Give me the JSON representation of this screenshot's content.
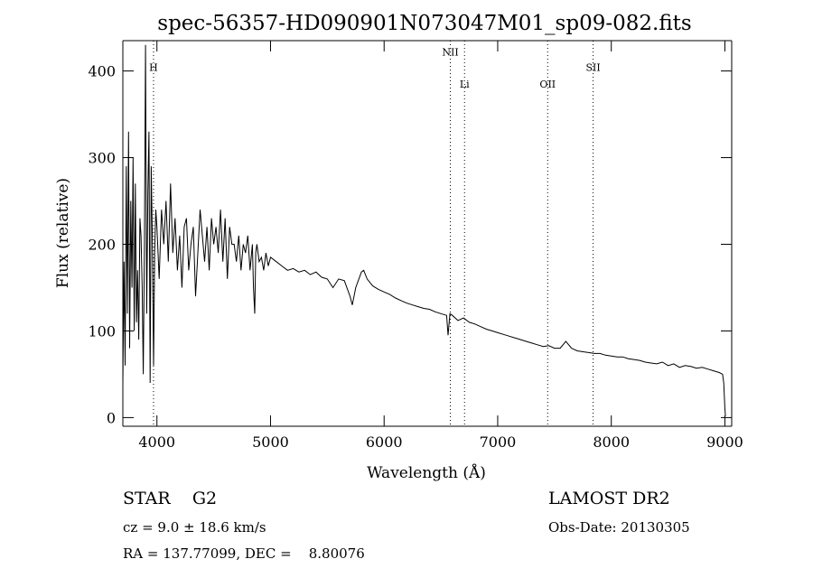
{
  "chart_data": {
    "type": "line",
    "title": "spec-56357-HD090901N073047M01_sp09-082.fits",
    "xlabel": "Wavelength (Å)",
    "ylabel": "Flux (relative)",
    "xlim": [
      3700,
      9060
    ],
    "ylim": [
      -10,
      435
    ],
    "xticks": [
      4000,
      5000,
      6000,
      7000,
      8000,
      9000
    ],
    "yticks": [
      0,
      100,
      200,
      300,
      400
    ],
    "grid": false,
    "line_color": "#000000",
    "series": [
      {
        "x": [
          3700,
          3710,
          3720,
          3730,
          3740,
          3750,
          3760,
          3770,
          3780,
          3790,
          3800,
          3810,
          3820,
          3830,
          3840,
          3850,
          3860,
          3870,
          3880,
          3890,
          3900,
          3910,
          3920,
          3930,
          3940,
          3950,
          3960,
          3970,
          3980,
          3990,
          4000,
          4020,
          4040,
          4060,
          4080,
          4100,
          4120,
          4140,
          4160,
          4180,
          4200,
          4220,
          4240,
          4260,
          4280,
          4300,
          4320,
          4340,
          4360,
          4380,
          4400,
          4420,
          4440,
          4460,
          4480,
          4500,
          4520,
          4540,
          4560,
          4580,
          4600,
          4620,
          4640,
          4660,
          4680,
          4700,
          4720,
          4740,
          4760,
          4780,
          4800,
          4820,
          4840,
          4850,
          4861,
          4870,
          4880,
          4900,
          4920,
          4940,
          4960,
          4980,
          5000,
          5050,
          5100,
          5150,
          5200,
          5250,
          5300,
          5350,
          5400,
          5450,
          5500,
          5550,
          5600,
          5650,
          5700,
          5720,
          5750,
          5800,
          5820,
          5850,
          5900,
          5950,
          6000,
          6050,
          6100,
          6150,
          6200,
          6250,
          6300,
          6350,
          6400,
          6450,
          6500,
          6550,
          6563,
          6580,
          6600,
          6650,
          6700,
          6750,
          6800,
          6850,
          6900,
          6950,
          7000,
          7050,
          7100,
          7150,
          7200,
          7250,
          7300,
          7350,
          7400,
          7450,
          7500,
          7550,
          7600,
          7650,
          7700,
          7750,
          7800,
          7850,
          7900,
          7950,
          8000,
          8050,
          8100,
          8150,
          8200,
          8250,
          8300,
          8350,
          8400,
          8450,
          8500,
          8550,
          8600,
          8650,
          8700,
          8750,
          8800,
          8850,
          8900,
          8950,
          8980,
          8990,
          9000,
          9005
        ],
        "y": [
          40,
          180,
          60,
          290,
          120,
          330,
          80,
          250,
          150,
          300,
          100,
          270,
          110,
          170,
          90,
          230,
          210,
          150,
          50,
          200,
          430,
          120,
          260,
          330,
          40,
          290,
          200,
          60,
          190,
          240,
          220,
          160,
          240,
          200,
          250,
          180,
          270,
          190,
          230,
          170,
          210,
          150,
          220,
          230,
          170,
          200,
          220,
          140,
          190,
          240,
          210,
          180,
          220,
          170,
          230,
          200,
          220,
          190,
          240,
          180,
          230,
          160,
          220,
          200,
          200,
          180,
          210,
          170,
          200,
          190,
          210,
          170,
          200,
          150,
          120,
          190,
          200,
          180,
          185,
          170,
          190,
          175,
          185,
          180,
          175,
          170,
          172,
          168,
          170,
          165,
          168,
          162,
          160,
          150,
          160,
          158,
          140,
          130,
          150,
          168,
          170,
          160,
          152,
          148,
          145,
          142,
          138,
          135,
          132,
          130,
          128,
          126,
          125,
          122,
          120,
          118,
          95,
          120,
          118,
          112,
          115,
          110,
          108,
          105,
          102,
          100,
          98,
          96,
          94,
          92,
          90,
          88,
          86,
          84,
          82,
          83,
          80,
          80,
          88,
          80,
          77,
          76,
          75,
          74,
          74,
          72,
          71,
          70,
          70,
          68,
          67,
          66,
          64,
          63,
          62,
          64,
          60,
          62,
          58,
          60,
          59,
          57,
          58,
          56,
          54,
          52,
          50,
          40,
          10,
          2
        ]
      }
    ],
    "annotations": [
      {
        "label": "H",
        "x": 3970,
        "label_y": 400
      },
      {
        "label": "NII",
        "x": 6583,
        "label_y": 418
      },
      {
        "label": "Li",
        "x": 6708,
        "label_y": 381
      },
      {
        "label": "OII",
        "x": 7440,
        "label_y": 381
      },
      {
        "label": "SII",
        "x": 7840,
        "label_y": 400
      }
    ]
  },
  "info": {
    "object_line": "STAR    G2",
    "survey": "LAMOST DR2",
    "cz_line": "cz = 9.0 ± 18.6 km/s",
    "obs_date": "Obs-Date: 20130305",
    "coords": "RA = 137.77099, DEC =    8.80076"
  }
}
